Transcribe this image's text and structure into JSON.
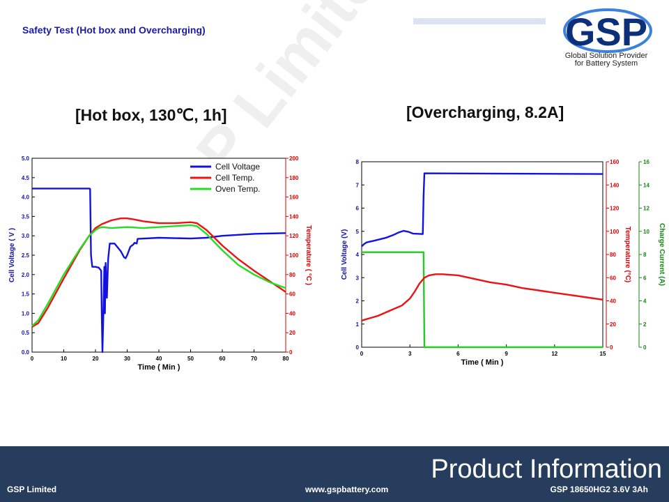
{
  "slide": {
    "title": "Safety Test (Hot box and Overcharging)",
    "logo_text": "GSP",
    "logo_tag1": "Global Solution Provider",
    "logo_tag2": "for Battery System",
    "watermark": "GSP Limited"
  },
  "footer": {
    "heading": "Product Information",
    "company": "GSP Limited",
    "website": "www.gspbattery.com",
    "product": "GSP 18650HG2 3.6V 3Ah"
  },
  "colors": {
    "voltage": "#1212e0",
    "temp": "#ee1111",
    "oven": "#22dd22",
    "current": "#22cc22",
    "left_axis": "#1212b0",
    "right_axis": "#dd0000",
    "current_axis": "#118811",
    "footer_bg": "#263d5e"
  },
  "chart_data": [
    {
      "type": "line",
      "title": "[Hot box, 130℃, 1h]",
      "xlabel": "Time ( Min )",
      "ylabel": "Cell Voltage ( V )",
      "y2label": "Temperature ( °C )",
      "xlim": [
        0,
        80
      ],
      "ylim": [
        0,
        5
      ],
      "y2lim": [
        0,
        200
      ],
      "xticks": [
        "0",
        "10",
        "20",
        "30",
        "40",
        "50",
        "60",
        "70",
        "80"
      ],
      "yticks": [
        "0.0",
        "0.5",
        "1.0",
        "1.5",
        "2.0",
        "2.5",
        "3.0",
        "3.5",
        "4.0",
        "4.5",
        "5.0"
      ],
      "y2ticks": [
        "0",
        "20",
        "40",
        "60",
        "80",
        "100",
        "120",
        "140",
        "160",
        "180",
        "200"
      ],
      "legend_position": "top-right",
      "series": [
        {
          "name": "Cell Voltage",
          "axis": "y",
          "x": [
            0,
            18,
            18.3,
            18.6,
            19,
            20,
            21,
            21.8,
            22.0,
            22.2,
            22.5,
            22.8,
            23.0,
            23.2,
            23.6,
            24,
            24.5,
            26,
            28,
            29,
            29.5,
            30,
            31,
            32,
            32.3,
            33,
            33.3,
            40,
            50,
            55,
            60,
            70,
            80
          ],
          "y": [
            4.22,
            4.22,
            4.21,
            2.5,
            2.2,
            2.2,
            2.18,
            2.1,
            0.9,
            0,
            1.0,
            2.2,
            1.0,
            2.3,
            1.4,
            2.4,
            2.8,
            2.8,
            2.6,
            2.45,
            2.42,
            2.5,
            2.72,
            2.78,
            2.82,
            2.8,
            2.92,
            2.95,
            2.93,
            2.95,
            3.0,
            3.05,
            3.07
          ]
        },
        {
          "name": "Cell Temp.",
          "axis": "y2",
          "x": [
            0,
            2,
            5,
            10,
            15,
            18,
            20,
            22,
            25,
            28,
            30,
            32,
            35,
            40,
            45,
            50,
            52,
            55,
            60,
            65,
            70,
            75,
            80
          ],
          "y": [
            26,
            30,
            46,
            76,
            105,
            120,
            128,
            132,
            136,
            138,
            138,
            137,
            135,
            133,
            133,
            134,
            133,
            126,
            110,
            96,
            84,
            73,
            62
          ]
        },
        {
          "name": "Oven Temp.",
          "axis": "y2",
          "x": [
            0,
            2,
            5,
            10,
            15,
            18,
            20,
            21,
            22,
            25,
            30,
            35,
            40,
            45,
            50,
            52,
            55,
            60,
            65,
            70,
            75,
            80
          ],
          "y": [
            27,
            33,
            50,
            80,
            106,
            120,
            126,
            128,
            129,
            128,
            129,
            128,
            129,
            130,
            131,
            130,
            122,
            105,
            90,
            80,
            72,
            66
          ]
        }
      ]
    },
    {
      "type": "line",
      "title": "[Overcharging, 8.2A]",
      "xlabel": "Time  ( Min )",
      "ylabel": "Cell Voltage (V)",
      "y2label": "Temperature (°C)",
      "y3label": "Charge Current (A)",
      "xlim": [
        0,
        15
      ],
      "ylim": [
        0,
        8
      ],
      "y2lim": [
        0,
        160
      ],
      "y3lim": [
        0,
        16
      ],
      "xticks": [
        "0",
        "3",
        "6",
        "9",
        "12",
        "15"
      ],
      "yticks": [
        "0",
        "1",
        "2",
        "3",
        "4",
        "5",
        "6",
        "7",
        "8"
      ],
      "y2ticks": [
        "0",
        "20",
        "40",
        "60",
        "80",
        "100",
        "120",
        "140",
        "160"
      ],
      "y3ticks": [
        "0",
        "2",
        "4",
        "6",
        "8",
        "10",
        "12",
        "14",
        "16"
      ],
      "series": [
        {
          "name": "Cell Voltage",
          "axis": "y",
          "x": [
            0,
            0.15,
            0.3,
            0.8,
            1.5,
            2.0,
            2.3,
            2.6,
            2.9,
            3.2,
            3.8,
            3.85,
            3.9,
            15
          ],
          "y": [
            4.35,
            4.45,
            4.52,
            4.6,
            4.72,
            4.85,
            4.95,
            5.02,
            4.98,
            4.9,
            4.88,
            6.5,
            7.5,
            7.47
          ]
        },
        {
          "name": "Charge Current",
          "axis": "y3",
          "x": [
            0,
            3.85,
            3.9,
            15
          ],
          "y": [
            8.2,
            8.2,
            0,
            0
          ]
        },
        {
          "name": "Cell Temp.",
          "axis": "y2",
          "x": [
            0,
            0.5,
            1,
            1.5,
            2,
            2.5,
            3,
            3.3,
            3.6,
            3.9,
            4.2,
            4.6,
            5,
            6,
            7,
            8,
            9,
            10,
            11,
            12,
            13,
            14,
            15
          ],
          "y": [
            23,
            25,
            27,
            30,
            33,
            36,
            42,
            48,
            55,
            60,
            62,
            63,
            63,
            62,
            59,
            56,
            54,
            51,
            49,
            47,
            45,
            43,
            41
          ]
        }
      ]
    }
  ]
}
